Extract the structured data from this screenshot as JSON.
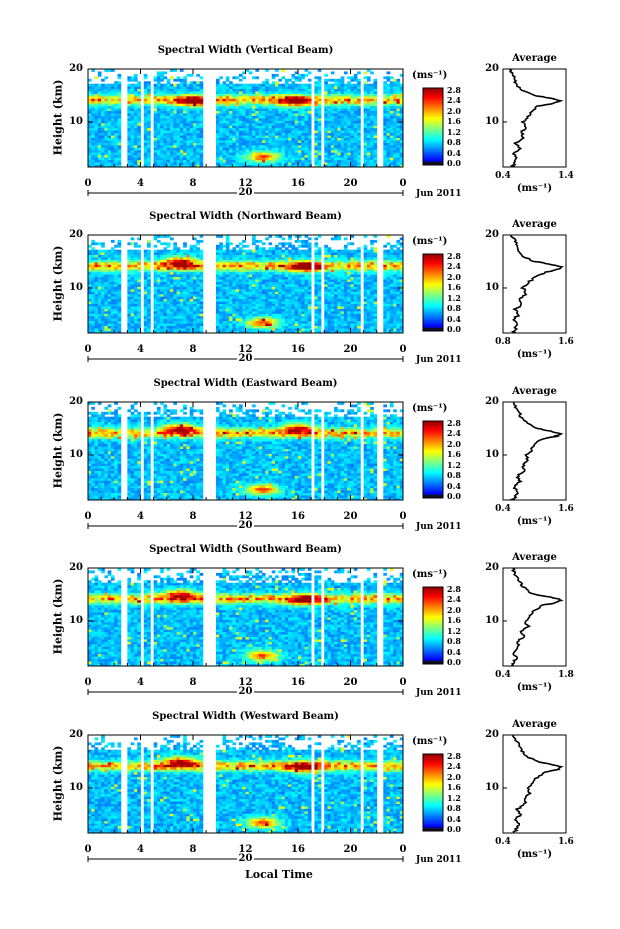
{
  "chart_data": [
    {
      "type": "heatmap",
      "title": "Spectral Width (Vertical Beam)",
      "ylabel": "Height (km)",
      "y_ticks": [
        "20",
        "10"
      ],
      "x_ticks": [
        "0",
        "4",
        "8",
        "12",
        "16",
        "20",
        "0"
      ],
      "day": "20",
      "month_label": "Jun 2011",
      "ylim": [
        1.5,
        20
      ],
      "xlim": [
        0,
        24
      ],
      "colorbar": {
        "unit": "(ms⁻¹)",
        "ticks": [
          "2.8",
          "2.4",
          "2.0",
          "1.6",
          "1.2",
          "0.8",
          "0.4",
          "0.0"
        ],
        "range": [
          0,
          2.8
        ]
      },
      "gaps_hours": [
        [
          2.5,
          2.9
        ],
        [
          4.0,
          4.3
        ],
        [
          4.8,
          5.0
        ],
        [
          8.8,
          9.7
        ],
        [
          17.1,
          17.3
        ],
        [
          17.8,
          18.0
        ],
        [
          20.7,
          21.0
        ],
        [
          22.1,
          22.4
        ]
      ],
      "hotspots": [
        {
          "time": 8,
          "height": 14
        },
        {
          "time": 15.8,
          "height": 14
        },
        {
          "time": 13.3,
          "height": 3.5
        }
      ],
      "average": {
        "title": "Average",
        "xlabel": "(ms⁻¹)",
        "x_ticks": [
          "0.4",
          "1.4"
        ],
        "xlim": [
          0.4,
          1.4
        ],
        "y_ticks": [
          "20",
          "10"
        ],
        "profile": [
          [
            1.5,
            0.55
          ],
          [
            2,
            0.58
          ],
          [
            3,
            0.62
          ],
          [
            4,
            0.58
          ],
          [
            5,
            0.66
          ],
          [
            6,
            0.6
          ],
          [
            7,
            0.72
          ],
          [
            8,
            0.7
          ],
          [
            9,
            0.76
          ],
          [
            10,
            0.72
          ],
          [
            11,
            0.8
          ],
          [
            12,
            0.85
          ],
          [
            13,
            0.95
          ],
          [
            13.5,
            1.2
          ],
          [
            14,
            1.32
          ],
          [
            14.5,
            1.15
          ],
          [
            15,
            0.9
          ],
          [
            16,
            0.72
          ],
          [
            17,
            0.62
          ],
          [
            18,
            0.58
          ],
          [
            19,
            0.55
          ],
          [
            20,
            0.5
          ]
        ]
      }
    },
    {
      "type": "heatmap",
      "title": "Spectral Width (Northward Beam)",
      "ylabel": "Height (km)",
      "y_ticks": [
        "20",
        "10"
      ],
      "x_ticks": [
        "0",
        "4",
        "8",
        "12",
        "16",
        "20",
        "0"
      ],
      "day": "20",
      "month_label": "Jun 2011",
      "ylim": [
        1.5,
        20
      ],
      "xlim": [
        0,
        24
      ],
      "colorbar": {
        "unit": "(ms⁻¹)",
        "ticks": [
          "2.8",
          "2.4",
          "2.0",
          "1.6",
          "1.2",
          "0.8",
          "0.4",
          "0.0"
        ],
        "range": [
          0,
          2.8
        ]
      },
      "gaps_hours": [
        [
          2.5,
          2.9
        ],
        [
          4.0,
          4.3
        ],
        [
          4.8,
          5.0
        ],
        [
          8.8,
          9.7
        ],
        [
          17.1,
          17.3
        ],
        [
          17.8,
          18.0
        ],
        [
          20.7,
          21.0
        ],
        [
          22.1,
          22.4
        ]
      ],
      "hotspots": [
        {
          "time": 7,
          "height": 15
        },
        {
          "time": 16.5,
          "height": 14
        },
        {
          "time": 13.3,
          "height": 3.5
        }
      ],
      "average": {
        "title": "Average",
        "xlabel": "(ms⁻¹)",
        "x_ticks": [
          "0.8",
          "1.6"
        ],
        "xlim": [
          0.8,
          1.6
        ],
        "y_ticks": [
          "20",
          "10"
        ],
        "profile": [
          [
            1.5,
            0.92
          ],
          [
            2,
            0.95
          ],
          [
            3,
            0.98
          ],
          [
            4,
            0.93
          ],
          [
            5,
            1.0
          ],
          [
            6,
            0.96
          ],
          [
            7,
            1.05
          ],
          [
            8,
            1.02
          ],
          [
            9,
            1.1
          ],
          [
            10,
            1.05
          ],
          [
            11,
            1.12
          ],
          [
            12,
            1.2
          ],
          [
            13,
            1.35
          ],
          [
            13.5,
            1.5
          ],
          [
            14,
            1.55
          ],
          [
            14.5,
            1.4
          ],
          [
            15,
            1.2
          ],
          [
            16,
            1.05
          ],
          [
            17,
            1.0
          ],
          [
            18,
            0.98
          ],
          [
            19,
            0.95
          ],
          [
            20,
            0.9
          ]
        ]
      }
    },
    {
      "type": "heatmap",
      "title": "Spectral Width (Eastward Beam)",
      "ylabel": "Height (km)",
      "y_ticks": [
        "20",
        "10"
      ],
      "x_ticks": [
        "0",
        "4",
        "8",
        "12",
        "16",
        "20",
        "0"
      ],
      "day": "20",
      "month_label": "Jun 2011",
      "ylim": [
        1.5,
        20
      ],
      "xlim": [
        0,
        24
      ],
      "colorbar": {
        "unit": "(ms⁻¹)",
        "ticks": [
          "2.8",
          "2.4",
          "2.0",
          "1.6",
          "1.2",
          "0.8",
          "0.4",
          "0.0"
        ],
        "range": [
          0,
          2.8
        ]
      },
      "gaps_hours": [
        [
          2.5,
          2.9
        ],
        [
          4.0,
          4.3
        ],
        [
          4.8,
          5.0
        ],
        [
          8.8,
          9.7
        ],
        [
          17.1,
          17.3
        ],
        [
          17.8,
          18.0
        ],
        [
          20.7,
          21.0
        ],
        [
          22.1,
          22.4
        ]
      ],
      "hotspots": [
        {
          "time": 7,
          "height": 15
        },
        {
          "time": 16,
          "height": 15
        },
        {
          "time": 13.3,
          "height": 3.5
        }
      ],
      "average": {
        "title": "Average",
        "xlabel": "(ms⁻¹)",
        "x_ticks": [
          "0.4",
          "1.6"
        ],
        "xlim": [
          0.4,
          1.6
        ],
        "y_ticks": [
          "20",
          "10"
        ],
        "profile": [
          [
            1.5,
            0.6
          ],
          [
            2,
            0.62
          ],
          [
            3,
            0.68
          ],
          [
            4,
            0.62
          ],
          [
            5,
            0.72
          ],
          [
            6,
            0.68
          ],
          [
            7,
            0.8
          ],
          [
            8,
            0.78
          ],
          [
            9,
            0.88
          ],
          [
            10,
            0.85
          ],
          [
            11,
            0.95
          ],
          [
            12,
            1.0
          ],
          [
            13,
            1.15
          ],
          [
            13.5,
            1.4
          ],
          [
            14,
            1.5
          ],
          [
            14.5,
            1.3
          ],
          [
            15,
            1.05
          ],
          [
            16,
            0.85
          ],
          [
            17,
            0.75
          ],
          [
            18,
            0.7
          ],
          [
            19,
            0.65
          ],
          [
            20,
            0.6
          ]
        ]
      }
    },
    {
      "type": "heatmap",
      "title": "Spectral Width (Southward Beam)",
      "ylabel": "Height (km)",
      "y_ticks": [
        "20",
        "10"
      ],
      "x_ticks": [
        "0",
        "4",
        "8",
        "12",
        "16",
        "20",
        "0"
      ],
      "day": "20",
      "month_label": "Jun 2011",
      "ylim": [
        1.5,
        20
      ],
      "xlim": [
        0,
        24
      ],
      "colorbar": {
        "unit": "(ms⁻¹)",
        "ticks": [
          "2.8",
          "2.4",
          "2.0",
          "1.6",
          "1.2",
          "0.8",
          "0.4",
          "0.0"
        ],
        "range": [
          0,
          2.8
        ]
      },
      "gaps_hours": [
        [
          2.5,
          2.9
        ],
        [
          4.0,
          4.3
        ],
        [
          4.8,
          5.0
        ],
        [
          8.8,
          9.7
        ],
        [
          17.1,
          17.3
        ],
        [
          17.8,
          18.0
        ],
        [
          20.7,
          21.0
        ],
        [
          22.1,
          22.4
        ]
      ],
      "hotspots": [
        {
          "time": 7,
          "height": 15
        },
        {
          "time": 16.5,
          "height": 14
        },
        {
          "time": 13.3,
          "height": 3.5
        }
      ],
      "average": {
        "title": "Average",
        "xlabel": "(ms⁻¹)",
        "x_ticks": [
          "0.4",
          "1.8"
        ],
        "xlim": [
          0.4,
          1.8
        ],
        "y_ticks": [
          "20",
          "10"
        ],
        "profile": [
          [
            1.5,
            0.6
          ],
          [
            2,
            0.62
          ],
          [
            3,
            0.7
          ],
          [
            4,
            0.64
          ],
          [
            5,
            0.75
          ],
          [
            6,
            0.7
          ],
          [
            7,
            0.85
          ],
          [
            8,
            0.82
          ],
          [
            9,
            0.95
          ],
          [
            10,
            0.9
          ],
          [
            11,
            1.0
          ],
          [
            12,
            1.1
          ],
          [
            13,
            1.3
          ],
          [
            13.5,
            1.6
          ],
          [
            14,
            1.7
          ],
          [
            14.5,
            1.45
          ],
          [
            15,
            1.1
          ],
          [
            16,
            0.9
          ],
          [
            17,
            0.8
          ],
          [
            18,
            0.72
          ],
          [
            19,
            0.66
          ],
          [
            20,
            0.62
          ]
        ]
      }
    },
    {
      "type": "heatmap",
      "title": "Spectral Width (Westward Beam)",
      "ylabel": "Height (km)",
      "y_ticks": [
        "20",
        "10"
      ],
      "x_ticks": [
        "0",
        "4",
        "8",
        "12",
        "16",
        "20",
        "0"
      ],
      "day": "20",
      "month_label": "Jun 2011",
      "ylim": [
        1.5,
        20
      ],
      "xlim": [
        0,
        24
      ],
      "colorbar": {
        "unit": "(ms⁻¹)",
        "ticks": [
          "2.8",
          "2.4",
          "2.0",
          "1.6",
          "1.2",
          "0.8",
          "0.4",
          "0.0"
        ],
        "range": [
          0,
          2.8
        ]
      },
      "gaps_hours": [
        [
          2.5,
          2.9
        ],
        [
          4.0,
          4.3
        ],
        [
          4.8,
          5.0
        ],
        [
          8.8,
          9.7
        ],
        [
          17.1,
          17.3
        ],
        [
          17.8,
          18.0
        ],
        [
          20.7,
          21.0
        ],
        [
          22.1,
          22.4
        ]
      ],
      "hotspots": [
        {
          "time": 7,
          "height": 15
        },
        {
          "time": 16.5,
          "height": 14
        },
        {
          "time": 13.3,
          "height": 3.5
        }
      ],
      "average": {
        "title": "Average",
        "xlabel": "(ms⁻¹)",
        "x_ticks": [
          "0.4",
          "1.6"
        ],
        "xlim": [
          0.4,
          1.6
        ],
        "y_ticks": [
          "20",
          "10"
        ],
        "profile": [
          [
            1.5,
            0.6
          ],
          [
            2,
            0.64
          ],
          [
            3,
            0.7
          ],
          [
            4,
            0.62
          ],
          [
            5,
            0.74
          ],
          [
            6,
            0.68
          ],
          [
            7,
            0.82
          ],
          [
            8,
            0.8
          ],
          [
            9,
            0.9
          ],
          [
            10,
            0.86
          ],
          [
            11,
            0.96
          ],
          [
            12,
            1.05
          ],
          [
            13,
            1.2
          ],
          [
            13.5,
            1.45
          ],
          [
            14,
            1.52
          ],
          [
            14.5,
            1.3
          ],
          [
            15,
            1.05
          ],
          [
            16,
            0.85
          ],
          [
            17,
            0.75
          ],
          [
            18,
            0.7
          ],
          [
            19,
            0.66
          ],
          [
            20,
            0.6
          ]
        ]
      }
    }
  ],
  "figure": {
    "xlabel": "Local Time"
  }
}
